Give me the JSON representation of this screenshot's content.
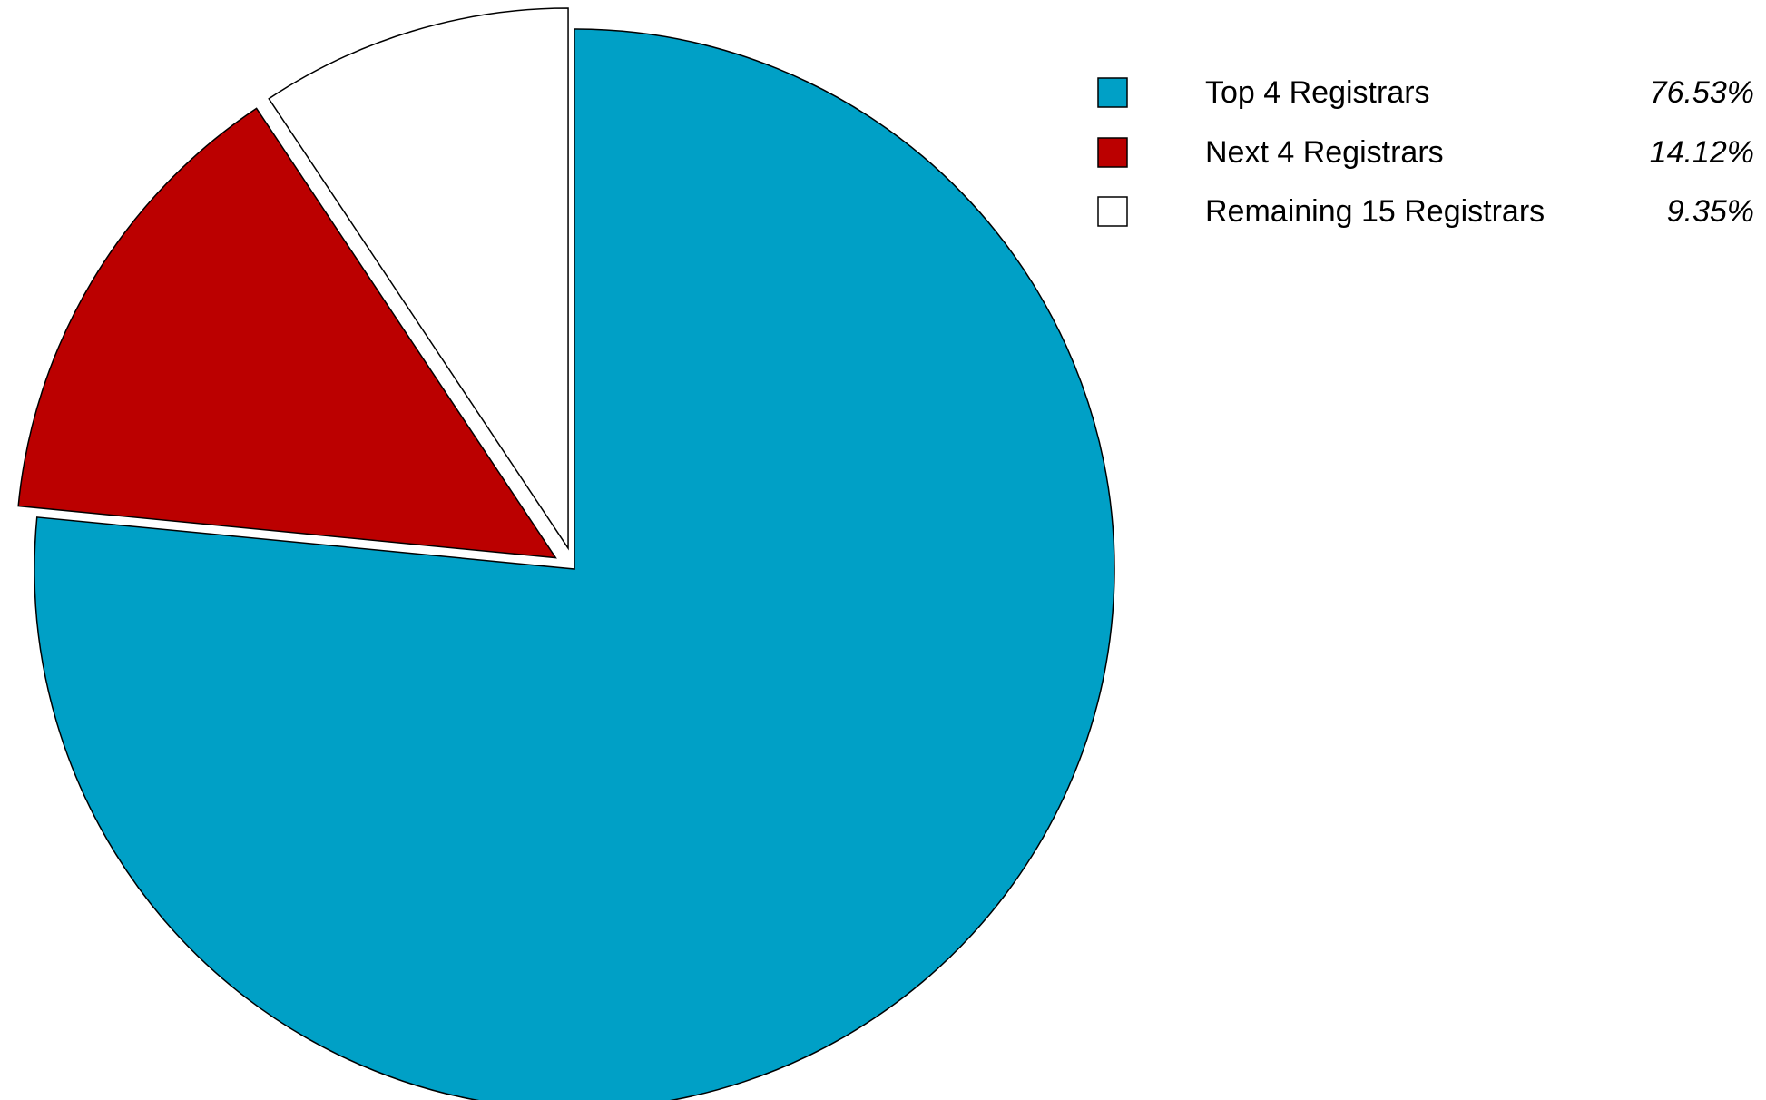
{
  "chart_data": {
    "type": "pie",
    "slices": [
      {
        "label": "Top 4 Registrars",
        "value": 76.53,
        "value_text": "76.53%",
        "color": "#00a0c6",
        "exploded": false
      },
      {
        "label": "Next 4 Registrars",
        "value": 14.12,
        "value_text": "14.12%",
        "color": "#bb0000",
        "exploded": true
      },
      {
        "label": "Remaining 15 Registrars",
        "value": 9.35,
        "value_text": "9.35%",
        "color": "#ffffff",
        "exploded": true
      }
    ],
    "start_angle": "12 o'clock",
    "direction": "clockwise",
    "legend_position": "top-right",
    "stroke_color": "#000000"
  }
}
